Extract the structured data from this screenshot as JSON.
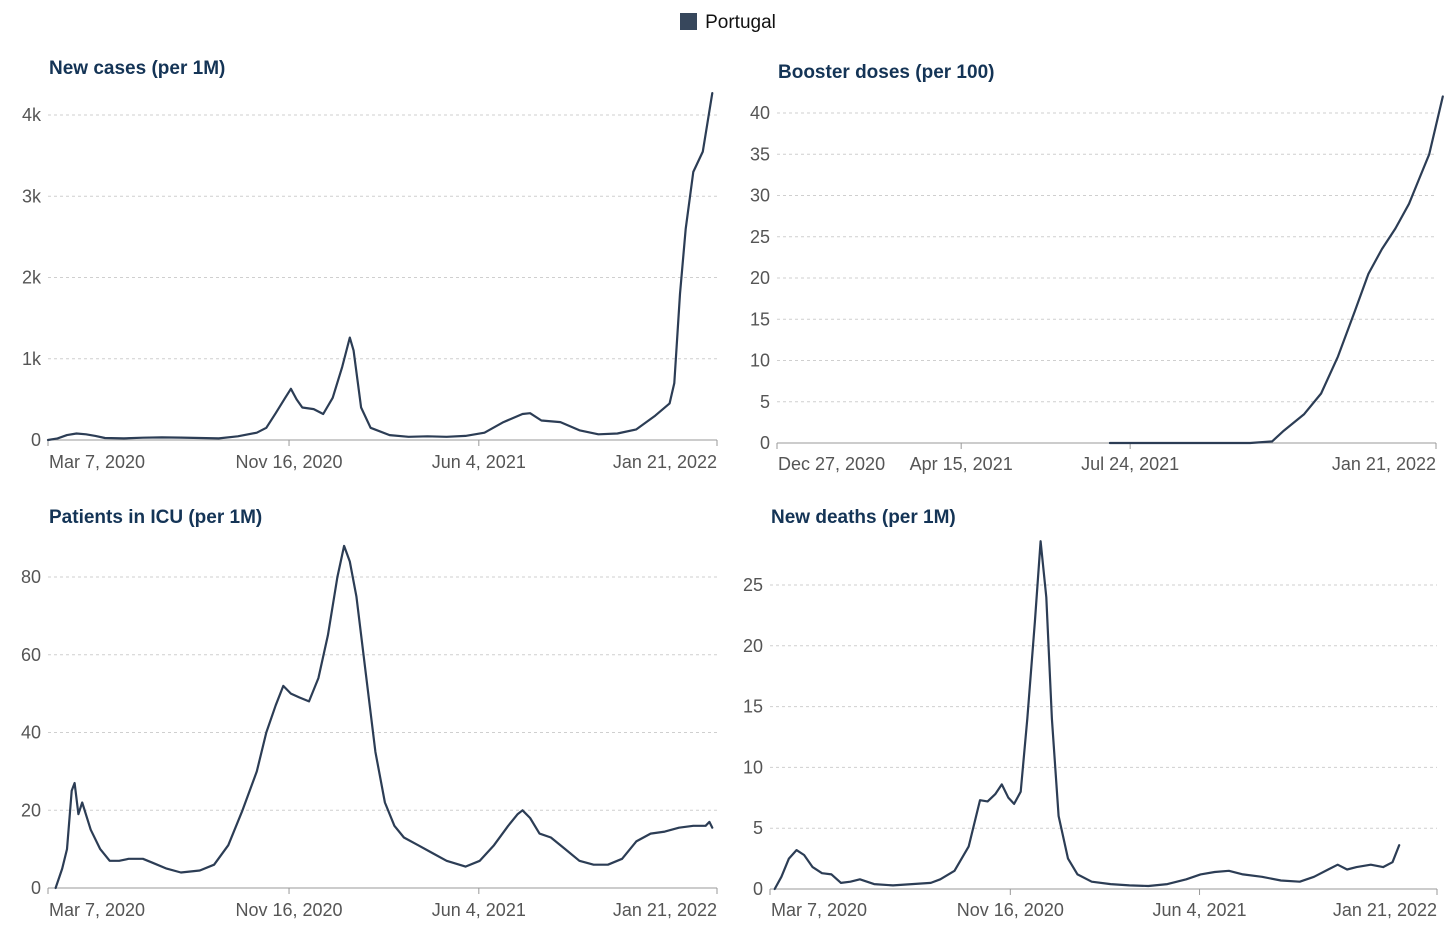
{
  "legend": {
    "label": "Portugal",
    "color": "#37475c"
  },
  "chart_data": [
    {
      "type": "line",
      "title": "New cases (per 1M)",
      "ylim": [
        0,
        4250
      ],
      "yticks": [
        {
          "v": 0,
          "label": "0"
        },
        {
          "v": 1000,
          "label": "1k"
        },
        {
          "v": 2000,
          "label": "2k"
        },
        {
          "v": 3000,
          "label": "3k"
        },
        {
          "v": 4000,
          "label": "4k"
        }
      ],
      "xlim": [
        0,
        705
      ],
      "xticks": [
        {
          "v": 0,
          "label": "Mar 7, 2020"
        },
        {
          "v": 254,
          "label": "Nov 16, 2020"
        },
        {
          "v": 454,
          "label": "Jun 4, 2021"
        },
        {
          "v": 705,
          "label": "Jan 21, 2022"
        }
      ],
      "series": [
        {
          "name": "Portugal",
          "points": [
            [
              0,
              0
            ],
            [
              10,
              20
            ],
            [
              20,
              60
            ],
            [
              30,
              80
            ],
            [
              40,
              70
            ],
            [
              50,
              50
            ],
            [
              60,
              25
            ],
            [
              80,
              20
            ],
            [
              100,
              28
            ],
            [
              120,
              32
            ],
            [
              140,
              30
            ],
            [
              160,
              25
            ],
            [
              180,
              20
            ],
            [
              200,
              45
            ],
            [
              220,
              90
            ],
            [
              230,
              150
            ],
            [
              240,
              330
            ],
            [
              250,
              520
            ],
            [
              256,
              630
            ],
            [
              262,
              500
            ],
            [
              268,
              400
            ],
            [
              280,
              380
            ],
            [
              290,
              320
            ],
            [
              300,
              520
            ],
            [
              310,
              900
            ],
            [
              318,
              1260
            ],
            [
              322,
              1100
            ],
            [
              330,
              400
            ],
            [
              340,
              150
            ],
            [
              360,
              60
            ],
            [
              380,
              40
            ],
            [
              400,
              45
            ],
            [
              420,
              40
            ],
            [
              440,
              50
            ],
            [
              460,
              90
            ],
            [
              480,
              220
            ],
            [
              500,
              320
            ],
            [
              508,
              330
            ],
            [
              520,
              240
            ],
            [
              540,
              220
            ],
            [
              560,
              120
            ],
            [
              580,
              70
            ],
            [
              600,
              80
            ],
            [
              620,
              130
            ],
            [
              640,
              300
            ],
            [
              655,
              450
            ],
            [
              660,
              700
            ],
            [
              666,
              1800
            ],
            [
              672,
              2600
            ],
            [
              680,
              3300
            ],
            [
              690,
              3550
            ],
            [
              700,
              4270
            ]
          ]
        }
      ],
      "color": "#2c3d55"
    },
    {
      "type": "line",
      "title": "Booster doses (per 100)",
      "ylim": [
        0,
        42
      ],
      "yticks": [
        {
          "v": 0,
          "label": "0"
        },
        {
          "v": 5,
          "label": "5"
        },
        {
          "v": 10,
          "label": "10"
        },
        {
          "v": 15,
          "label": "15"
        },
        {
          "v": 20,
          "label": "20"
        },
        {
          "v": 25,
          "label": "25"
        },
        {
          "v": 30,
          "label": "30"
        },
        {
          "v": 35,
          "label": "35"
        },
        {
          "v": 40,
          "label": "40"
        }
      ],
      "xlim": [
        0,
        390
      ],
      "xticks": [
        {
          "v": 0,
          "label": "Dec 27, 2020"
        },
        {
          "v": 109,
          "label": "Apr 15, 2021"
        },
        {
          "v": 209,
          "label": "Jul 24, 2021"
        },
        {
          "v": 390,
          "label": "Jan 21, 2022"
        }
      ],
      "series": [
        {
          "name": "Portugal",
          "points": [
            [
              197,
              0
            ],
            [
              250,
              0
            ],
            [
              280,
              0
            ],
            [
              293,
              0.2
            ],
            [
              300,
              1.5
            ],
            [
              312,
              3.5
            ],
            [
              322,
              6
            ],
            [
              332,
              10.5
            ],
            [
              342,
              16
            ],
            [
              350,
              20.5
            ],
            [
              358,
              23.5
            ],
            [
              366,
              26
            ],
            [
              374,
              29
            ],
            [
              380,
              32
            ],
            [
              386,
              35
            ],
            [
              390,
              38.5
            ],
            [
              394,
              42
            ]
          ]
        }
      ],
      "color": "#2c3d55"
    },
    {
      "type": "line",
      "title": "Patients in ICU (per 1M)",
      "ylim": [
        0,
        90
      ],
      "yticks": [
        {
          "v": 0,
          "label": "0"
        },
        {
          "v": 20,
          "label": "20"
        },
        {
          "v": 40,
          "label": "40"
        },
        {
          "v": 60,
          "label": "60"
        },
        {
          "v": 80,
          "label": "80"
        }
      ],
      "xlim": [
        0,
        705
      ],
      "xticks": [
        {
          "v": 0,
          "label": "Mar 7, 2020"
        },
        {
          "v": 254,
          "label": "Nov 16, 2020"
        },
        {
          "v": 454,
          "label": "Jun 4, 2021"
        },
        {
          "v": 705,
          "label": "Jan 21, 2022"
        }
      ],
      "series": [
        {
          "name": "Portugal",
          "points": [
            [
              8,
              0
            ],
            [
              15,
              5
            ],
            [
              20,
              10
            ],
            [
              25,
              25
            ],
            [
              28,
              27
            ],
            [
              32,
              19
            ],
            [
              36,
              22
            ],
            [
              45,
              15
            ],
            [
              55,
              10
            ],
            [
              65,
              7
            ],
            [
              75,
              7
            ],
            [
              85,
              7.5
            ],
            [
              100,
              7.5
            ],
            [
              110,
              6.5
            ],
            [
              125,
              5
            ],
            [
              140,
              4
            ],
            [
              160,
              4.5
            ],
            [
              175,
              6
            ],
            [
              190,
              11
            ],
            [
              205,
              20
            ],
            [
              220,
              30
            ],
            [
              230,
              40
            ],
            [
              240,
              47
            ],
            [
              248,
              52
            ],
            [
              256,
              50
            ],
            [
              265,
              49
            ],
            [
              275,
              48
            ],
            [
              285,
              54
            ],
            [
              295,
              65
            ],
            [
              305,
              80
            ],
            [
              312,
              88
            ],
            [
              318,
              84
            ],
            [
              325,
              75
            ],
            [
              335,
              55
            ],
            [
              345,
              35
            ],
            [
              355,
              22
            ],
            [
              365,
              16
            ],
            [
              375,
              13
            ],
            [
              390,
              11
            ],
            [
              405,
              9
            ],
            [
              420,
              7
            ],
            [
              440,
              5.5
            ],
            [
              455,
              7
            ],
            [
              470,
              11
            ],
            [
              485,
              16
            ],
            [
              495,
              19
            ],
            [
              500,
              20
            ],
            [
              508,
              18
            ],
            [
              518,
              14
            ],
            [
              530,
              13
            ],
            [
              545,
              10
            ],
            [
              560,
              7
            ],
            [
              575,
              6
            ],
            [
              590,
              6
            ],
            [
              605,
              7.5
            ],
            [
              620,
              12
            ],
            [
              635,
              14
            ],
            [
              650,
              14.5
            ],
            [
              665,
              15.5
            ],
            [
              680,
              16
            ],
            [
              693,
              16
            ],
            [
              697,
              17
            ],
            [
              700,
              15.5
            ]
          ]
        }
      ],
      "color": "#2c3d55"
    },
    {
      "type": "line",
      "title": "New deaths (per 1M)",
      "ylim": [
        0,
        29
      ],
      "yticks": [
        {
          "v": 0,
          "label": "0"
        },
        {
          "v": 5,
          "label": "5"
        },
        {
          "v": 10,
          "label": "10"
        },
        {
          "v": 15,
          "label": "15"
        },
        {
          "v": 20,
          "label": "20"
        },
        {
          "v": 25,
          "label": "25"
        }
      ],
      "xlim": [
        0,
        705
      ],
      "xticks": [
        {
          "v": 0,
          "label": "Mar 7, 2020"
        },
        {
          "v": 254,
          "label": "Nov 16, 2020"
        },
        {
          "v": 454,
          "label": "Jun 4, 2021"
        },
        {
          "v": 705,
          "label": "Jan 21, 2022"
        }
      ],
      "series": [
        {
          "name": "Portugal",
          "points": [
            [
              5,
              0
            ],
            [
              12,
              1
            ],
            [
              20,
              2.5
            ],
            [
              28,
              3.2
            ],
            [
              36,
              2.8
            ],
            [
              45,
              1.8
            ],
            [
              55,
              1.3
            ],
            [
              65,
              1.2
            ],
            [
              75,
              0.5
            ],
            [
              85,
              0.6
            ],
            [
              95,
              0.8
            ],
            [
              110,
              0.4
            ],
            [
              130,
              0.3
            ],
            [
              150,
              0.4
            ],
            [
              170,
              0.5
            ],
            [
              180,
              0.8
            ],
            [
              195,
              1.5
            ],
            [
              210,
              3.5
            ],
            [
              222,
              7.3
            ],
            [
              230,
              7.2
            ],
            [
              238,
              7.8
            ],
            [
              245,
              8.6
            ],
            [
              252,
              7.5
            ],
            [
              258,
              7.0
            ],
            [
              265,
              8
            ],
            [
              272,
              14
            ],
            [
              280,
              22
            ],
            [
              286,
              28.6
            ],
            [
              292,
              24
            ],
            [
              298,
              14
            ],
            [
              305,
              6
            ],
            [
              315,
              2.5
            ],
            [
              325,
              1.2
            ],
            [
              340,
              0.6
            ],
            [
              360,
              0.4
            ],
            [
              380,
              0.3
            ],
            [
              400,
              0.25
            ],
            [
              420,
              0.4
            ],
            [
              440,
              0.8
            ],
            [
              455,
              1.2
            ],
            [
              470,
              1.4
            ],
            [
              485,
              1.5
            ],
            [
              500,
              1.2
            ],
            [
              520,
              1.0
            ],
            [
              540,
              0.7
            ],
            [
              560,
              0.6
            ],
            [
              575,
              1.0
            ],
            [
              590,
              1.6
            ],
            [
              600,
              2.0
            ],
            [
              610,
              1.6
            ],
            [
              620,
              1.8
            ],
            [
              635,
              2.0
            ],
            [
              648,
              1.8
            ],
            [
              658,
              2.2
            ],
            [
              665,
              3.6
            ]
          ]
        }
      ],
      "color": "#2c3d55"
    }
  ]
}
